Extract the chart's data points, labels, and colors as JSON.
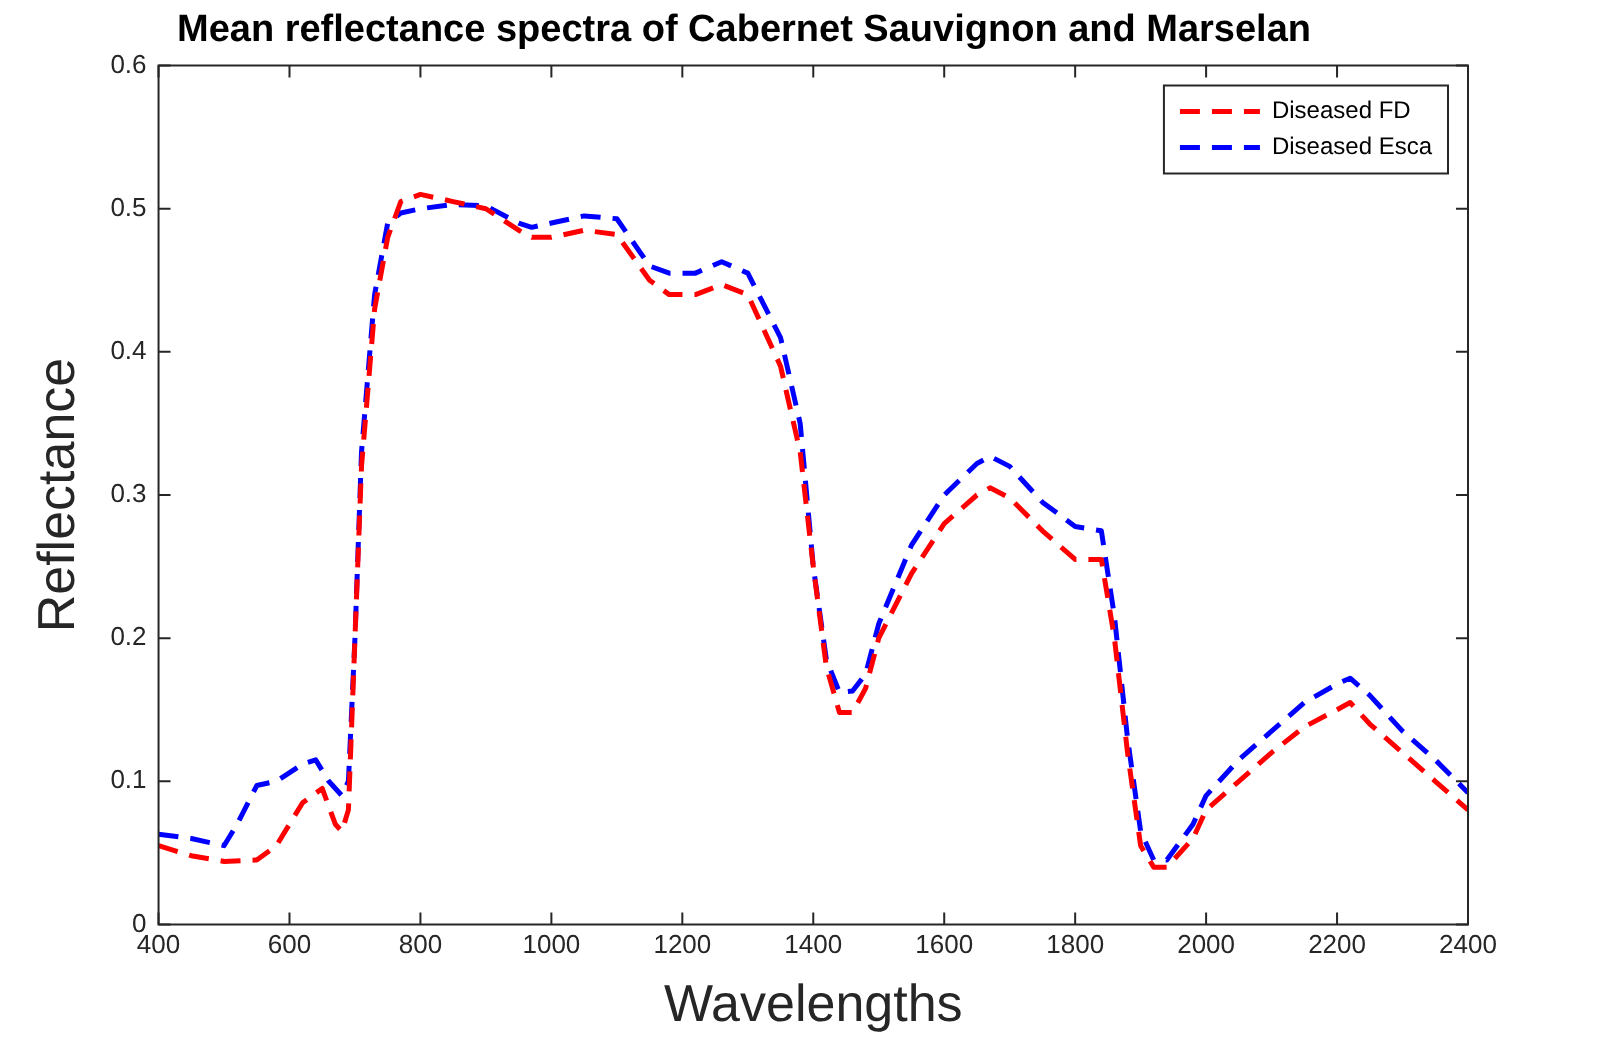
{
  "chart_data": {
    "type": "line",
    "title": "Mean reflectance spectra of Cabernet Sauvignon and Marselan",
    "xlabel": "Wavelengths",
    "ylabel": "Reflectance",
    "xlim": [
      400,
      2400
    ],
    "xticks": [
      400,
      600,
      800,
      1000,
      1200,
      1400,
      1600,
      1800,
      2000,
      2200,
      2400
    ],
    "ylim": [
      0,
      0.6
    ],
    "yticks": [
      0,
      0.1,
      0.2,
      0.3,
      0.4,
      0.5,
      0.6
    ],
    "grid": false,
    "legend": "top right",
    "marker": "none",
    "line_style": "dashed",
    "series": [
      {
        "name": "Diseased FD",
        "color": "#ff0000",
        "x": [
          400,
          450,
          500,
          550,
          580,
          620,
          650,
          670,
          680,
          690,
          700,
          710,
          730,
          750,
          770,
          800,
          850,
          900,
          950,
          970,
          1000,
          1050,
          1100,
          1150,
          1180,
          1220,
          1260,
          1300,
          1350,
          1380,
          1400,
          1420,
          1440,
          1460,
          1480,
          1500,
          1550,
          1600,
          1650,
          1670,
          1700,
          1750,
          1800,
          1840,
          1860,
          1880,
          1900,
          1920,
          1940,
          1980,
          2000,
          2050,
          2100,
          2150,
          2200,
          2220,
          2250,
          2300,
          2350,
          2400
        ],
        "values": [
          0.055,
          0.048,
          0.044,
          0.045,
          0.055,
          0.085,
          0.095,
          0.07,
          0.065,
          0.08,
          0.2,
          0.32,
          0.43,
          0.48,
          0.505,
          0.51,
          0.505,
          0.5,
          0.485,
          0.48,
          0.48,
          0.485,
          0.482,
          0.45,
          0.44,
          0.44,
          0.447,
          0.44,
          0.39,
          0.33,
          0.25,
          0.18,
          0.148,
          0.148,
          0.165,
          0.2,
          0.245,
          0.28,
          0.3,
          0.305,
          0.298,
          0.275,
          0.255,
          0.255,
          0.2,
          0.12,
          0.055,
          0.04,
          0.04,
          0.06,
          0.08,
          0.1,
          0.12,
          0.138,
          0.15,
          0.155,
          0.14,
          0.12,
          0.1,
          0.08
        ]
      },
      {
        "name": "Diseased Esca",
        "color": "#0000ff",
        "x": [
          400,
          450,
          500,
          520,
          550,
          580,
          620,
          640,
          660,
          680,
          690,
          700,
          710,
          730,
          750,
          770,
          800,
          850,
          900,
          950,
          970,
          1000,
          1050,
          1100,
          1150,
          1180,
          1220,
          1260,
          1300,
          1350,
          1380,
          1400,
          1420,
          1440,
          1460,
          1480,
          1500,
          1550,
          1600,
          1650,
          1670,
          1700,
          1750,
          1800,
          1840,
          1860,
          1880,
          1900,
          1920,
          1940,
          1980,
          2000,
          2050,
          2100,
          2150,
          2200,
          2220,
          2250,
          2300,
          2350,
          2400
        ],
        "values": [
          0.063,
          0.06,
          0.055,
          0.07,
          0.097,
          0.1,
          0.112,
          0.115,
          0.1,
          0.09,
          0.1,
          0.2,
          0.33,
          0.44,
          0.49,
          0.497,
          0.5,
          0.503,
          0.502,
          0.49,
          0.487,
          0.49,
          0.495,
          0.493,
          0.46,
          0.455,
          0.455,
          0.463,
          0.455,
          0.41,
          0.35,
          0.25,
          0.185,
          0.162,
          0.163,
          0.175,
          0.21,
          0.265,
          0.3,
          0.322,
          0.327,
          0.32,
          0.295,
          0.278,
          0.275,
          0.215,
          0.13,
          0.065,
          0.045,
          0.045,
          0.07,
          0.09,
          0.115,
          0.135,
          0.155,
          0.168,
          0.172,
          0.16,
          0.135,
          0.115,
          0.092
        ]
      }
    ]
  }
}
